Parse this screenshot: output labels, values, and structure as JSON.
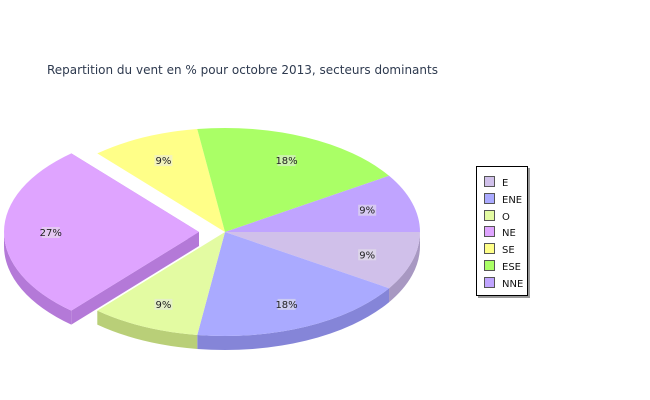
{
  "chart_data": {
    "type": "pie",
    "title": "Repartition du vent en % pour octobre 2013, secteurs dominants",
    "slices": [
      {
        "label": "E",
        "value": 9,
        "display": "9%",
        "color": "#d0c0ea",
        "side": "#a898c2",
        "exploded": false
      },
      {
        "label": "ENE",
        "value": 18,
        "display": "18%",
        "color": "#aaaaff",
        "side": "#8585d8",
        "exploded": false
      },
      {
        "label": "O",
        "value": 9,
        "display": "9%",
        "color": "#e3fba2",
        "side": "#b9cf78",
        "exploded": false
      },
      {
        "label": "NE",
        "value": 27,
        "display": "27%",
        "color": "#dfa4ff",
        "side": "#b479d8",
        "exploded": true
      },
      {
        "label": "SE",
        "value": 9,
        "display": "9%",
        "color": "#ffff88",
        "side": "#d3d360",
        "exploded": false
      },
      {
        "label": "ESE",
        "value": 18,
        "display": "18%",
        "color": "#aaff66",
        "side": "#84d044",
        "exploded": false
      },
      {
        "label": "NNE",
        "value": 9,
        "display": "9%",
        "color": "#c0a4ff",
        "side": "#987ed8",
        "exploded": false
      }
    ],
    "legend_position": "right"
  }
}
